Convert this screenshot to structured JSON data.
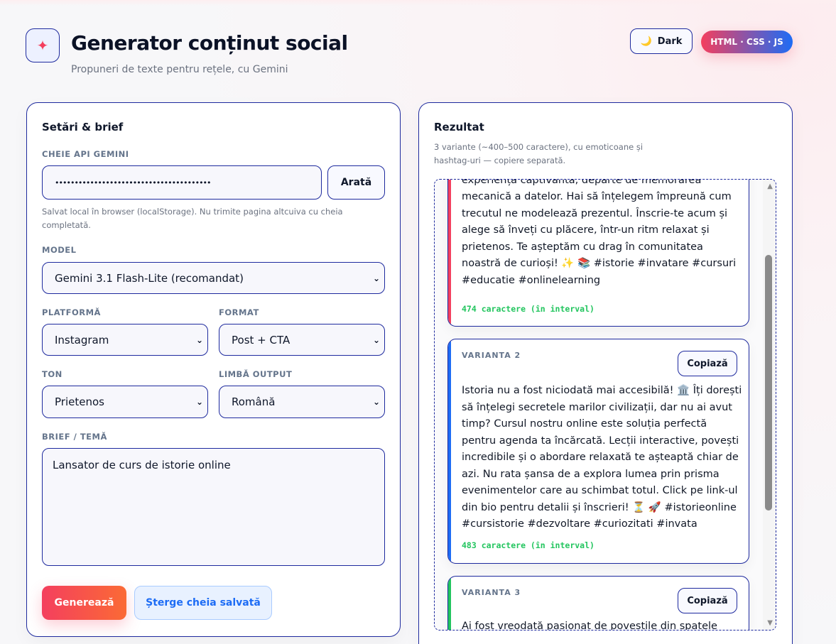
{
  "header": {
    "title": "Generator conținut social",
    "subtitle": "Propuneri de texte pentru rețele, cu Gemini",
    "logo_icon": "sparkle-icon",
    "dark_label": "Dark",
    "dark_icon": "moon-icon",
    "badge": "HTML · CSS · JS"
  },
  "settings": {
    "title": "Setări & brief",
    "api_label": "CHEIE API GEMINI",
    "api_value": "••••••••••••••••••••••••••••••••••••••••",
    "show_label": "Arată",
    "api_hint": "Salvat local în browser (localStorage). Nu trimite pagina altcuiva cu cheia completată.",
    "model_label": "MODEL",
    "model_value": "Gemini 3.1 Flash-Lite (recomandat)",
    "platform_label": "PLATFORMĂ",
    "platform_value": "Instagram",
    "format_label": "FORMAT",
    "format_value": "Post + CTA",
    "tone_label": "TON",
    "tone_value": "Prietenos",
    "lang_label": "LIMBĂ OUTPUT",
    "lang_value": "Română",
    "brief_label": "BRIEF / TEMĂ",
    "brief_value": "Lansator de curs de istorie online",
    "generate_label": "Generează",
    "clear_label": "Șterge cheia salvată"
  },
  "result": {
    "title": "Rezultat",
    "subtitle": "3 variante (~400–500 caractere), cu emoticoane și hashtag-uri — copiere separată.",
    "copy_label": "Copiază",
    "variants": [
      {
        "label": "VARIANTA 1",
        "text": "experiență captivantă, departe de memorarea mecanică a datelor. Hai să înțelegem împreună cum trecutul ne modelează prezentul. Înscrie-te acum și alege să înveți cu plăcere, într-un ritm relaxat și prietenos. Te așteptăm cu drag în comunitatea noastră de curioși! ✨ 📚 #istorie #invatare #cursuri #educatie #onlinelearning",
        "count": "474 caractere (în interval)",
        "color": "#f43f5e"
      },
      {
        "label": "VARIANTA 2",
        "text": "Istoria nu a fost niciodată mai accesibilă! 🏛️ Îți dorești să înțelegi secretele marilor civilizații, dar nu ai avut timp? Cursul nostru online este soluția perfectă pentru agenda ta încărcată. Lecții interactive, povești incredibile și o abordare relaxată te așteaptă chiar de azi. Nu rata șansa de a explora lumea prin prisma evenimentelor care au schimbat totul. Click pe link-ul din bio pentru detalii și înscrieri! ⏳ 🚀 #istorieonline #cursistorie #dezvoltare #curiozitati #invata",
        "count": "483 caractere (în interval)",
        "color": "#1d6cf5"
      },
      {
        "label": "VARIANTA 3",
        "text": "Ai fost vreodată pasionat de poveștile din spatele",
        "color": "#22c55e"
      }
    ]
  }
}
